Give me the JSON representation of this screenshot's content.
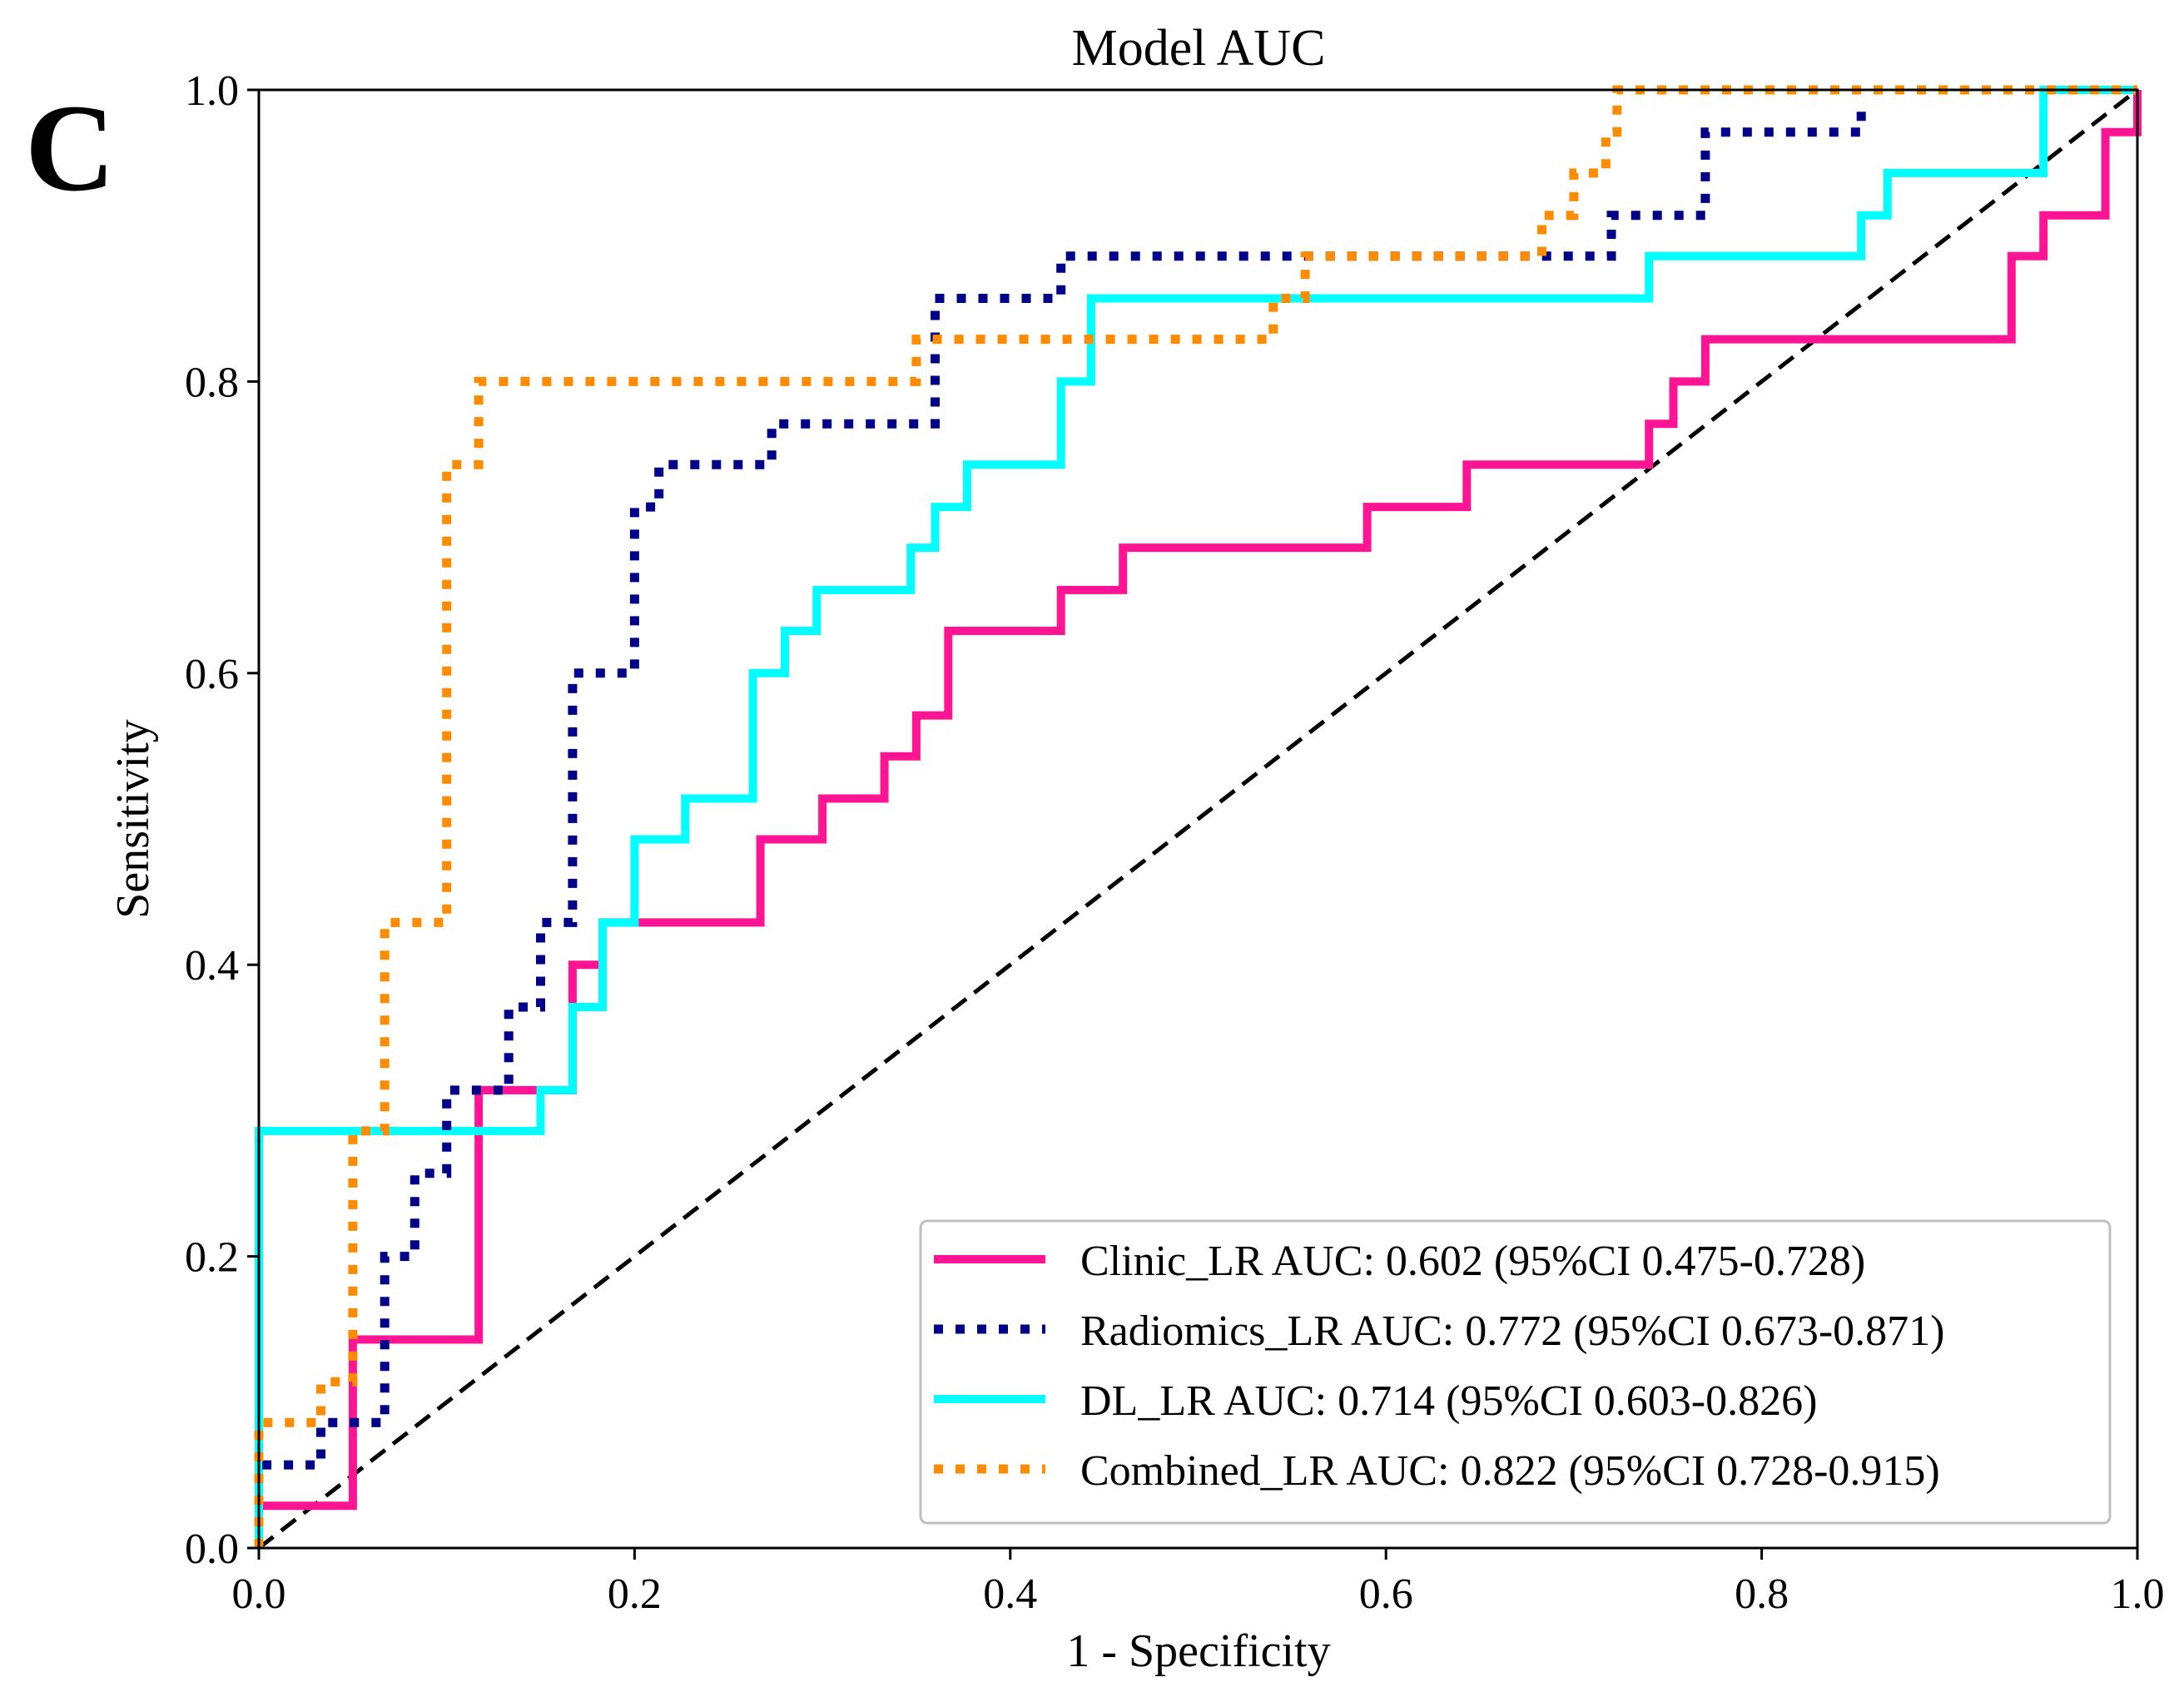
{
  "panel_label": "C",
  "chart_data": {
    "type": "line",
    "title": "Model AUC",
    "xlabel": "1 - Specificity",
    "ylabel": "Sensitivity",
    "xlim": [
      0.0,
      1.0
    ],
    "ylim": [
      0.0,
      1.0
    ],
    "xticks": [
      "0.0",
      "0.2",
      "0.4",
      "0.6",
      "0.8",
      "1.0"
    ],
    "yticks": [
      "0.0",
      "0.2",
      "0.4",
      "0.6",
      "0.8",
      "1.0"
    ],
    "grid": false,
    "legend_position": "lower-right",
    "series": [
      {
        "name": "Clinic_LR",
        "label": "Clinic_LR AUC: 0.602 (95%CI 0.475-0.728)",
        "color": "#ff1493",
        "style": "solid",
        "points": [
          [
            0,
            0
          ],
          [
            0,
            0.029
          ],
          [
            0.05,
            0.029
          ],
          [
            0.05,
            0.143
          ],
          [
            0.117,
            0.143
          ],
          [
            0.117,
            0.314
          ],
          [
            0.167,
            0.314
          ],
          [
            0.167,
            0.4
          ],
          [
            0.183,
            0.4
          ],
          [
            0.183,
            0.429
          ],
          [
            0.267,
            0.429
          ],
          [
            0.267,
            0.486
          ],
          [
            0.3,
            0.486
          ],
          [
            0.3,
            0.514
          ],
          [
            0.333,
            0.514
          ],
          [
            0.333,
            0.543
          ],
          [
            0.35,
            0.543
          ],
          [
            0.35,
            0.571
          ],
          [
            0.367,
            0.571
          ],
          [
            0.367,
            0.629
          ],
          [
            0.427,
            0.629
          ],
          [
            0.427,
            0.657
          ],
          [
            0.46,
            0.657
          ],
          [
            0.46,
            0.686
          ],
          [
            0.59,
            0.686
          ],
          [
            0.59,
            0.714
          ],
          [
            0.643,
            0.714
          ],
          [
            0.643,
            0.743
          ],
          [
            0.74,
            0.743
          ],
          [
            0.74,
            0.771
          ],
          [
            0.753,
            0.771
          ],
          [
            0.753,
            0.8
          ],
          [
            0.77,
            0.8
          ],
          [
            0.77,
            0.829
          ],
          [
            0.933,
            0.829
          ],
          [
            0.933,
            0.886
          ],
          [
            0.95,
            0.886
          ],
          [
            0.95,
            0.914
          ],
          [
            0.983,
            0.914
          ],
          [
            0.983,
            0.971
          ],
          [
            1.0,
            0.971
          ],
          [
            1.0,
            1.0
          ]
        ]
      },
      {
        "name": "Radiomics_LR",
        "label": "Radiomics_LR AUC: 0.772 (95%CI 0.673-0.871)",
        "color": "#00008b",
        "style": "dotted",
        "points": [
          [
            0,
            0
          ],
          [
            0,
            0.057
          ],
          [
            0.033,
            0.057
          ],
          [
            0.033,
            0.086
          ],
          [
            0.067,
            0.086
          ],
          [
            0.067,
            0.2
          ],
          [
            0.083,
            0.2
          ],
          [
            0.083,
            0.229
          ],
          [
            0.083,
            0.257
          ],
          [
            0.1,
            0.257
          ],
          [
            0.1,
            0.314
          ],
          [
            0.133,
            0.314
          ],
          [
            0.133,
            0.371
          ],
          [
            0.15,
            0.371
          ],
          [
            0.15,
            0.429
          ],
          [
            0.167,
            0.429
          ],
          [
            0.167,
            0.6
          ],
          [
            0.2,
            0.6
          ],
          [
            0.2,
            0.714
          ],
          [
            0.213,
            0.714
          ],
          [
            0.213,
            0.743
          ],
          [
            0.273,
            0.743
          ],
          [
            0.273,
            0.771
          ],
          [
            0.36,
            0.771
          ],
          [
            0.36,
            0.857
          ],
          [
            0.427,
            0.857
          ],
          [
            0.427,
            0.886
          ],
          [
            0.543,
            0.886
          ],
          [
            0.543,
            0.886
          ],
          [
            0.72,
            0.886
          ],
          [
            0.72,
            0.914
          ],
          [
            0.77,
            0.914
          ],
          [
            0.77,
            0.971
          ],
          [
            0.853,
            0.971
          ],
          [
            0.853,
            0.986
          ]
        ]
      },
      {
        "name": "DL_LR",
        "label": "DL_LR AUC: 0.714 (95%CI 0.603-0.826)",
        "color": "#00ffff",
        "style": "solid",
        "points": [
          [
            0,
            0
          ],
          [
            0,
            0.286
          ],
          [
            0.15,
            0.286
          ],
          [
            0.15,
            0.314
          ],
          [
            0.167,
            0.314
          ],
          [
            0.167,
            0.371
          ],
          [
            0.183,
            0.371
          ],
          [
            0.183,
            0.429
          ],
          [
            0.2,
            0.429
          ],
          [
            0.2,
            0.486
          ],
          [
            0.227,
            0.486
          ],
          [
            0.227,
            0.514
          ],
          [
            0.263,
            0.514
          ],
          [
            0.263,
            0.6
          ],
          [
            0.28,
            0.6
          ],
          [
            0.28,
            0.629
          ],
          [
            0.297,
            0.629
          ],
          [
            0.297,
            0.657
          ],
          [
            0.347,
            0.657
          ],
          [
            0.347,
            0.686
          ],
          [
            0.36,
            0.686
          ],
          [
            0.36,
            0.714
          ],
          [
            0.377,
            0.714
          ],
          [
            0.377,
            0.743
          ],
          [
            0.427,
            0.743
          ],
          [
            0.427,
            0.8
          ],
          [
            0.443,
            0.8
          ],
          [
            0.443,
            0.857
          ],
          [
            0.74,
            0.857
          ],
          [
            0.74,
            0.886
          ],
          [
            0.853,
            0.886
          ],
          [
            0.853,
            0.914
          ],
          [
            0.867,
            0.914
          ],
          [
            0.867,
            0.943
          ],
          [
            0.95,
            0.943
          ],
          [
            0.95,
            1.0
          ],
          [
            1.0,
            1.0
          ]
        ]
      },
      {
        "name": "Combined_LR",
        "label": "Combined_LR AUC: 0.822 (95%CI 0.728-0.915)",
        "color": "#ff8c00",
        "style": "dotted",
        "points": [
          [
            0,
            0
          ],
          [
            0,
            0.086
          ],
          [
            0.033,
            0.086
          ],
          [
            0.033,
            0.114
          ],
          [
            0.05,
            0.114
          ],
          [
            0.05,
            0.286
          ],
          [
            0.067,
            0.286
          ],
          [
            0.067,
            0.429
          ],
          [
            0.1,
            0.429
          ],
          [
            0.1,
            0.743
          ],
          [
            0.117,
            0.743
          ],
          [
            0.117,
            0.8
          ],
          [
            0.35,
            0.8
          ],
          [
            0.35,
            0.829
          ],
          [
            0.54,
            0.829
          ],
          [
            0.54,
            0.857
          ],
          [
            0.557,
            0.857
          ],
          [
            0.557,
            0.886
          ],
          [
            0.683,
            0.886
          ],
          [
            0.683,
            0.914
          ],
          [
            0.7,
            0.914
          ],
          [
            0.7,
            0.943
          ],
          [
            0.717,
            0.943
          ],
          [
            0.717,
            0.971
          ],
          [
            0.723,
            0.971
          ],
          [
            0.723,
            1.0
          ],
          [
            1.0,
            1.0
          ]
        ]
      },
      {
        "name": "Reference",
        "color": "#000000",
        "style": "dashed",
        "points": [
          [
            0,
            0
          ],
          [
            1,
            1
          ]
        ]
      }
    ]
  }
}
